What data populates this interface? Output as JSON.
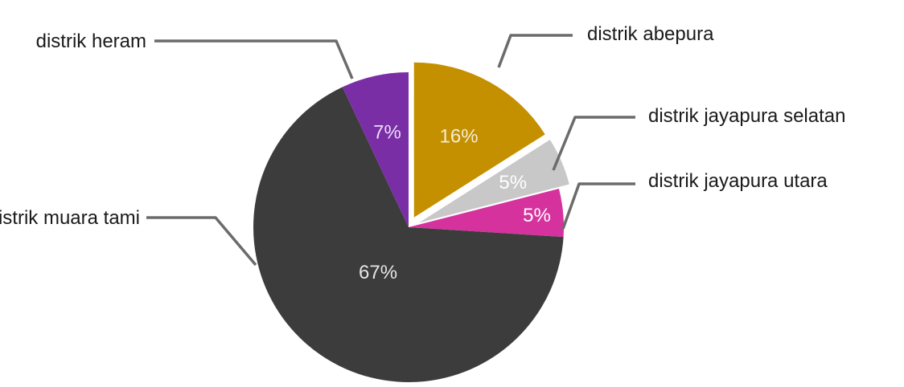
{
  "chart_data": {
    "type": "pie",
    "title": "",
    "slices": [
      {
        "name": "distrik abepura",
        "value": 16,
        "label": "16%",
        "color": "#c49000",
        "label_color": "#f5ecd4",
        "exploded": true
      },
      {
        "name": "distrik jayapura selatan",
        "value": 5,
        "label": "5%",
        "color": "#c8c8c8",
        "label_color": "#ffffff",
        "exploded": true
      },
      {
        "name": "distrik jayapura utara",
        "value": 5,
        "label": "5%",
        "color": "#d6329e",
        "label_color": "#ffffff",
        "exploded": false
      },
      {
        "name": "distrik muara tami",
        "value": 67,
        "label": "67%",
        "color": "#3c3c3c",
        "label_color": "#e6e6e6",
        "exploded": false
      },
      {
        "name": "distrik heram",
        "value": 7,
        "label": "7%",
        "color": "#7a2ea6",
        "label_color": "#eadcf5",
        "exploded": false
      }
    ],
    "leader_color": "#6b6b6b",
    "legend": "none"
  }
}
